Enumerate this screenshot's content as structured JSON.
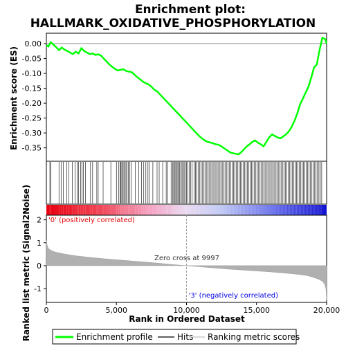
{
  "chart_data": {
    "type": "line",
    "title": "Enrichment plot:",
    "subtitle": "HALLMARK_OXIDATIVE_PHOSPHORYLATION",
    "top_panel": {
      "ylabel": "Enrichment score (ES)",
      "ylim": [
        -0.395,
        0.035
      ],
      "yticks": [
        "0.00",
        "-0.05",
        "-0.10",
        "-0.15",
        "-0.20",
        "-0.25",
        "-0.30",
        "-0.35"
      ],
      "ytick_values": [
        0.0,
        -0.05,
        -0.1,
        -0.15,
        -0.2,
        -0.25,
        -0.3,
        -0.35
      ],
      "series": [
        {
          "name": "Enrichment profile",
          "color": "#00ff00",
          "x": [
            0,
            150,
            300,
            500,
            700,
            900,
            1100,
            1300,
            1500,
            1700,
            1900,
            2100,
            2300,
            2500,
            2700,
            2900,
            3100,
            3300,
            3500,
            3700,
            3900,
            4100,
            4300,
            4500,
            4700,
            4900,
            5100,
            5300,
            5500,
            5700,
            5900,
            6100,
            6300,
            6500,
            6700,
            6900,
            7100,
            7300,
            7500,
            7700,
            7900,
            8100,
            8300,
            8500,
            8700,
            8900,
            9100,
            9300,
            9500,
            9700,
            9900,
            10100,
            10300,
            10500,
            10700,
            10900,
            11100,
            11300,
            11500,
            11700,
            11900,
            12100,
            12300,
            12500,
            12700,
            12900,
            13100,
            13300,
            13500,
            13700,
            13900,
            14100,
            14300,
            14500,
            14700,
            14900,
            15100,
            15300,
            15500,
            15700,
            15900,
            16100,
            16300,
            16500,
            16700,
            16900,
            17100,
            17300,
            17500,
            17700,
            17900,
            18100,
            18300,
            18500,
            18700,
            18900,
            19100,
            19300,
            19500,
            19700,
            19900,
            20000
          ],
          "y": [
            -0.005,
            -0.01,
            0.005,
            -0.003,
            -0.012,
            -0.022,
            -0.013,
            -0.02,
            -0.025,
            -0.03,
            -0.035,
            -0.027,
            -0.033,
            -0.015,
            -0.025,
            -0.03,
            -0.035,
            -0.033,
            -0.038,
            -0.036,
            -0.04,
            -0.05,
            -0.06,
            -0.07,
            -0.078,
            -0.085,
            -0.09,
            -0.088,
            -0.086,
            -0.092,
            -0.094,
            -0.096,
            -0.105,
            -0.113,
            -0.12,
            -0.128,
            -0.133,
            -0.137,
            -0.145,
            -0.155,
            -0.16,
            -0.17,
            -0.18,
            -0.19,
            -0.2,
            -0.21,
            -0.22,
            -0.23,
            -0.24,
            -0.25,
            -0.26,
            -0.27,
            -0.28,
            -0.29,
            -0.3,
            -0.31,
            -0.318,
            -0.325,
            -0.33,
            -0.332,
            -0.335,
            -0.338,
            -0.34,
            -0.345,
            -0.352,
            -0.358,
            -0.365,
            -0.368,
            -0.37,
            -0.372,
            -0.365,
            -0.355,
            -0.345,
            -0.338,
            -0.33,
            -0.325,
            -0.333,
            -0.338,
            -0.345,
            -0.33,
            -0.315,
            -0.305,
            -0.31,
            -0.315,
            -0.318,
            -0.312,
            -0.305,
            -0.295,
            -0.28,
            -0.26,
            -0.235,
            -0.205,
            -0.185,
            -0.165,
            -0.145,
            -0.115,
            -0.08,
            -0.07,
            -0.02,
            0.02,
            0.015,
            0.0
          ]
        }
      ]
    },
    "hits": {
      "name": "Hits",
      "positions": [
        250,
        330,
        900,
        1050,
        1200,
        1450,
        1600,
        1850,
        2050,
        2200,
        2300,
        2450,
        2550,
        2650,
        2800,
        3150,
        3300,
        3600,
        3700,
        4050,
        4600,
        5000,
        5150,
        5250,
        5300,
        5380,
        5450,
        5530,
        5600,
        5680,
        5750,
        5850,
        5950,
        6050,
        6350,
        6600,
        6800,
        6950,
        7100,
        7250,
        7350,
        7600,
        7900,
        8050,
        8300,
        8550,
        8650,
        8900,
        9000,
        9080,
        9150,
        9230,
        9300,
        9380,
        9450,
        9520,
        9600,
        9680,
        9750,
        9830,
        9900,
        10000,
        10100,
        10200,
        10300,
        10400,
        10550,
        10650,
        10750,
        10850,
        10950,
        11050,
        11150,
        11250,
        11350,
        11450,
        11550,
        11650,
        11750,
        11850,
        11950,
        12050,
        12150,
        12250,
        12350,
        12450,
        12550,
        12650,
        12750,
        12850,
        12950,
        13050,
        13150,
        13250,
        13350,
        13450,
        13550,
        13650,
        13750,
        13850,
        13950,
        14050,
        14150,
        14250,
        14350,
        14450,
        14550,
        14650,
        14750,
        14850,
        14950,
        15050,
        15150,
        15250,
        15350,
        15450,
        15550,
        15650,
        15750,
        15850,
        15950,
        16050,
        16150,
        16250,
        16350,
        16450,
        16550,
        16650,
        16750,
        16850,
        16950,
        17050,
        17150,
        17250,
        17350,
        17450,
        17550,
        17650,
        17750,
        17850,
        17950,
        18050,
        18150,
        18250,
        18350,
        18450,
        18550,
        18650,
        18750,
        18850,
        18950,
        19050,
        19150,
        19250,
        19350,
        19450,
        19550,
        19650
      ]
    },
    "bottom_panel": {
      "ylabel": "Ranked list metric (Signal2Noise)",
      "xlabel": "Rank in Ordered Dataset",
      "ylim": [
        -1.6,
        2.2
      ],
      "yticks": [
        "2",
        "1",
        "0",
        "-1"
      ],
      "ytick_values": [
        2,
        1,
        0,
        -1
      ],
      "xticks": [
        "0",
        "5,000",
        "10,000",
        "15,000",
        "20,000"
      ],
      "xtick_values": [
        0,
        5000,
        10000,
        15000,
        20000
      ],
      "metric_profile": {
        "name": "Ranking metric scores",
        "color": "#b0b0b0",
        "x": [
          0,
          30,
          80,
          150,
          300,
          500,
          800,
          1200,
          2000,
          3000,
          4000,
          5000,
          6000,
          7000,
          8000,
          9000,
          9997,
          11000,
          12000,
          13000,
          14000,
          15000,
          16000,
          17000,
          18000,
          18600,
          19000,
          19400,
          19700,
          19850,
          19950,
          20000
        ],
        "y": [
          1.1,
          0.95,
          0.85,
          0.75,
          0.68,
          0.62,
          0.57,
          0.52,
          0.44,
          0.37,
          0.31,
          0.26,
          0.21,
          0.16,
          0.11,
          0.05,
          0.0,
          -0.05,
          -0.1,
          -0.15,
          -0.19,
          -0.23,
          -0.27,
          -0.32,
          -0.38,
          -0.43,
          -0.5,
          -0.58,
          -0.68,
          -0.8,
          -1.0,
          -1.5
        ]
      },
      "zero_cross_label": "Zero cross at 9997",
      "zero_cross": 9997,
      "pos_label": "'0' (positively correlated)",
      "neg_label": "'3' (negatively correlated)",
      "pos_color": "#ff0000",
      "neg_color": "#0000ff"
    },
    "xlim": [
      0,
      20000
    ],
    "legend": {
      "placement": "bottom",
      "entries": [
        {
          "label": "Enrichment profile",
          "color": "#00ff00"
        },
        {
          "label": "Hits",
          "color": "#000000"
        },
        {
          "label": "Ranking metric scores",
          "color": "#c0c0c0"
        }
      ]
    }
  }
}
